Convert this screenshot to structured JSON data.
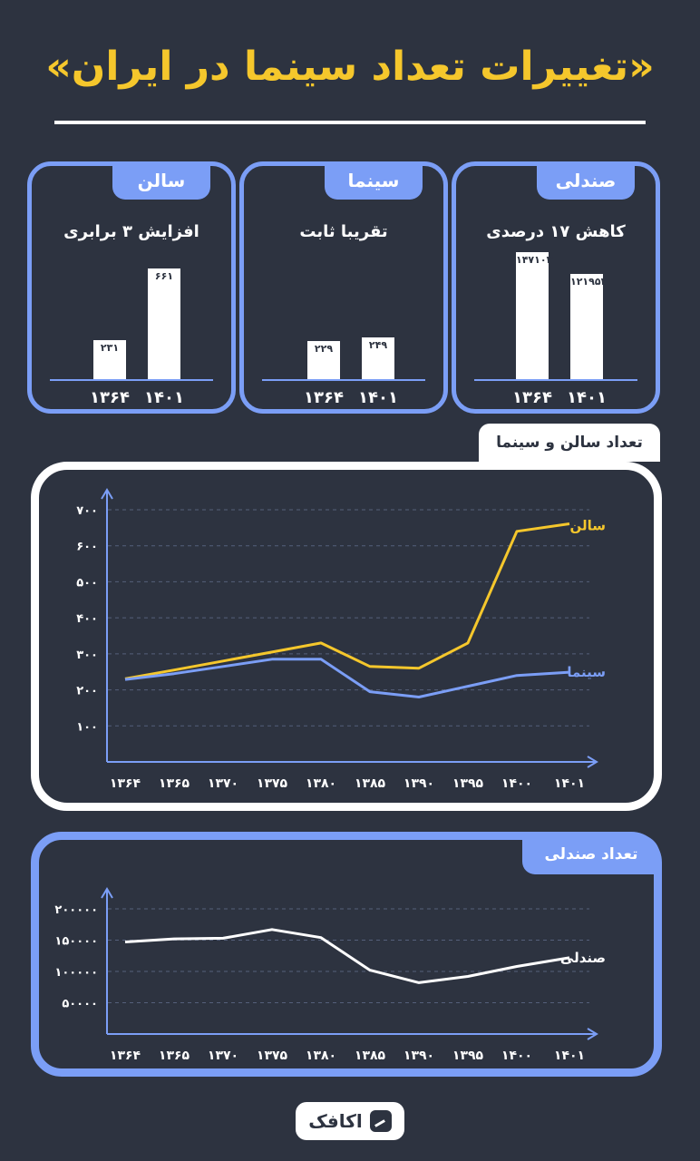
{
  "title": "«تغییرات تعداد سینما در ایران»",
  "cards": [
    {
      "key": "seats",
      "tab": "صندلی",
      "note": "کاهش ۱۷ درصدی",
      "bars": [
        {
          "year": "۱۳۶۴",
          "value": 147103,
          "label": "۱۴۷۱۰۳"
        },
        {
          "year": "۱۴۰۱",
          "value": 121952,
          "label": "۱۲۱۹۵۲"
        }
      ]
    },
    {
      "key": "cinemas",
      "tab": "سینما",
      "note": "تقریبا ثابت",
      "bars": [
        {
          "year": "۱۳۶۴",
          "value": 229,
          "label": "۲۲۹"
        },
        {
          "year": "۱۴۰۱",
          "value": 249,
          "label": "۲۴۹"
        }
      ]
    },
    {
      "key": "halls",
      "tab": "سالن",
      "note": "افزایش ۳ برابری",
      "bars": [
        {
          "year": "۱۳۶۴",
          "value": 231,
          "label": "۲۳۱"
        },
        {
          "year": "۱۴۰۱",
          "value": 661,
          "label": "۶۶۱"
        }
      ]
    }
  ],
  "line_panel": {
    "tab": "تعداد سالن و سینما"
  },
  "seat_panel": {
    "tab": "تعداد صندلی"
  },
  "logo": {
    "text": "اکافک"
  },
  "colors": {
    "background": "#2d3340",
    "accent": "#7b9ef6",
    "title": "#f5c72c",
    "halls_line": "#f5c72c",
    "cinemas_line": "#7b9ef6",
    "seats_line": "#ffffff"
  },
  "chart_data": [
    {
      "type": "line",
      "x": [
        "۱۳۶۴",
        "۱۳۶۵",
        "۱۳۷۰",
        "۱۳۷۵",
        "۱۳۸۰",
        "۱۳۸۵",
        "۱۳۹۰",
        "۱۳۹۵",
        "۱۴۰۰",
        "۱۴۰۱"
      ],
      "yticks": [
        "۱۰۰",
        "۲۰۰",
        "۳۰۰",
        "۴۰۰",
        "۵۰۰",
        "۶۰۰",
        "۷۰۰"
      ],
      "ylim": [
        0,
        700
      ],
      "series": [
        {
          "name": "سالن",
          "values": [
            231,
            255,
            280,
            305,
            330,
            265,
            260,
            330,
            640,
            661
          ]
        },
        {
          "name": "سینما",
          "values": [
            229,
            245,
            265,
            285,
            285,
            195,
            180,
            210,
            240,
            249
          ]
        }
      ],
      "grid": true
    },
    {
      "type": "line",
      "x": [
        "۱۳۶۴",
        "۱۳۶۵",
        "۱۳۷۰",
        "۱۳۷۵",
        "۱۳۸۰",
        "۱۳۸۵",
        "۱۳۹۰",
        "۱۳۹۵",
        "۱۴۰۰",
        "۱۴۰۱"
      ],
      "yticks": [
        "۵۰۰۰۰",
        "۱۰۰۰۰۰",
        "۱۵۰۰۰۰",
        "۲۰۰۰۰۰"
      ],
      "ylim": [
        0,
        200000
      ],
      "series": [
        {
          "name": "صندلی",
          "values": [
            147103,
            152000,
            153000,
            167000,
            154000,
            102000,
            82000,
            92000,
            108000,
            121952
          ]
        }
      ],
      "grid": true
    }
  ]
}
